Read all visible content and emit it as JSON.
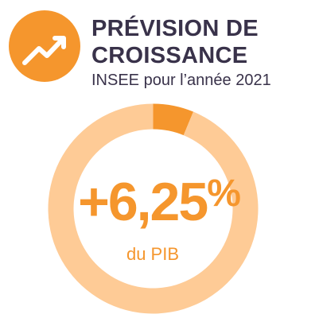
{
  "header": {
    "title_line1": "PRÉVISION DE",
    "title_line2": "CROISSANCE",
    "subtitle": "INSEE pour l’année 2021",
    "icon": "trend-up-arrow-icon"
  },
  "colors": {
    "accent": "#f5962d",
    "ring_light": "#fecb96",
    "text_dark": "#39324a"
  },
  "chart_data": {
    "type": "pie",
    "title": "PRÉVISION DE CROISSANCE",
    "subtitle": "INSEE pour l’année 2021",
    "center_value": "+6,25",
    "center_unit": "%",
    "center_label": "du PIB",
    "slices": [
      {
        "value": 6.25
      },
      {
        "value": 93.75
      }
    ]
  }
}
